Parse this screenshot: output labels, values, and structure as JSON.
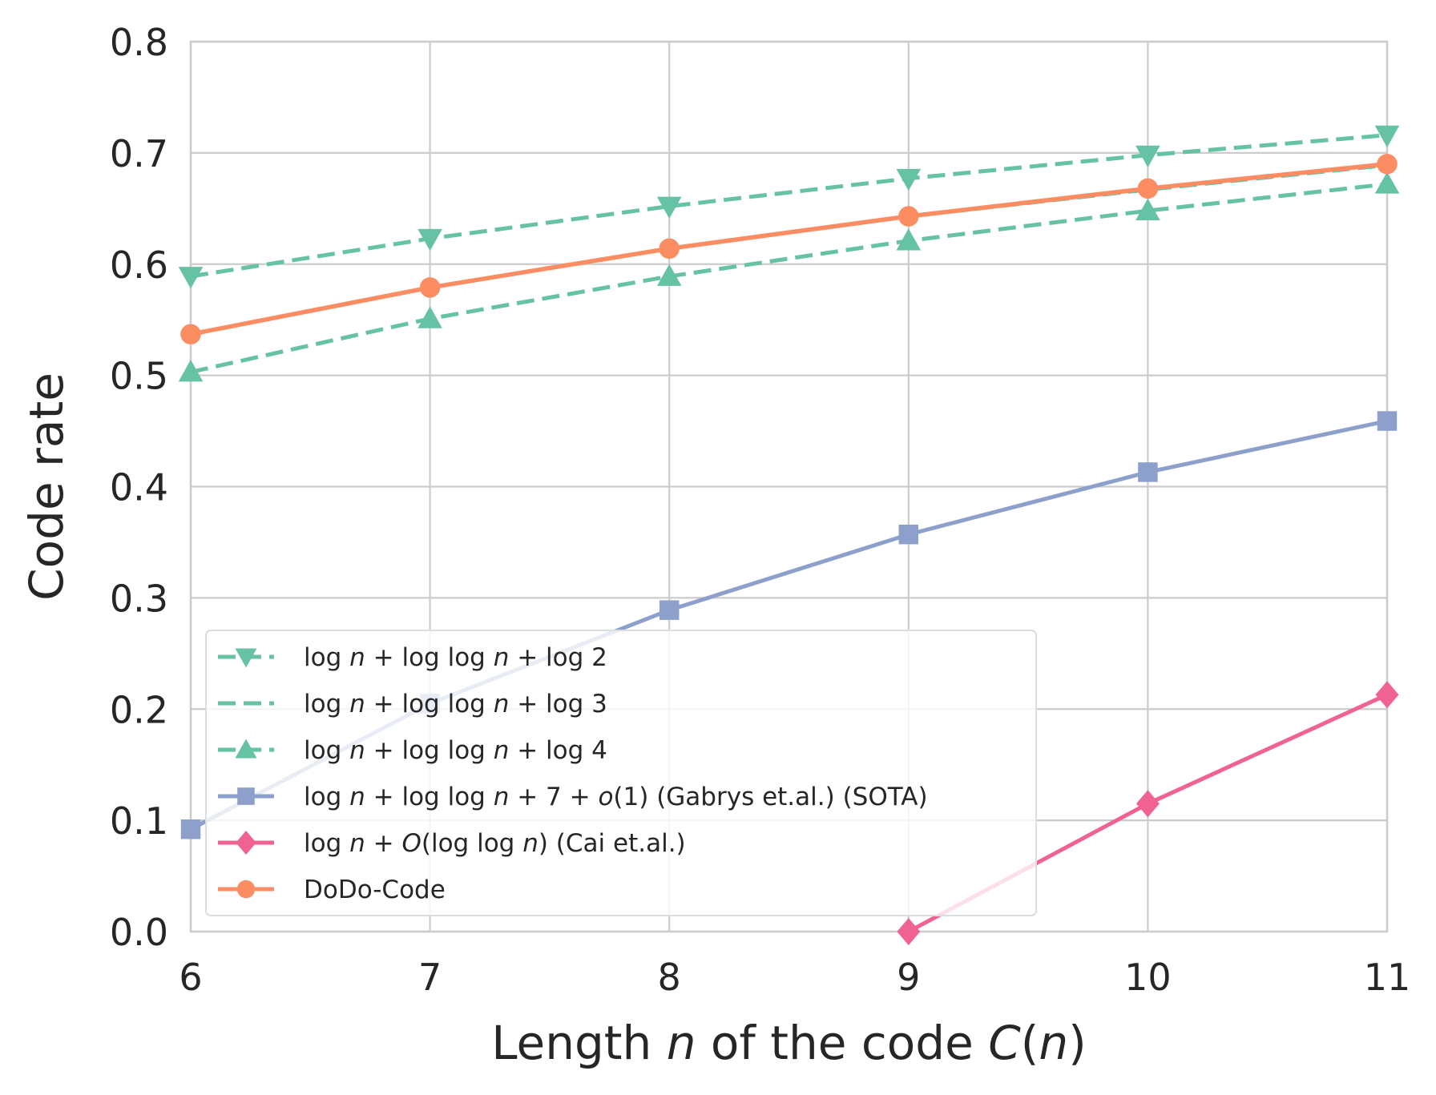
{
  "chart_data": {
    "type": "line",
    "title": "",
    "xlabel": {
      "prefix": "Length ",
      "n": "n",
      "middle": " of the code ",
      "c": "C",
      "open": "(",
      "n2": "n",
      "close": ")"
    },
    "ylabel": "Code rate",
    "xlim": [
      6,
      11
    ],
    "ylim": [
      0.0,
      0.8
    ],
    "grid": true,
    "legend_placement": "lower-left",
    "x_ticks": [
      6,
      7,
      8,
      9,
      10,
      11
    ],
    "x_tick_labels": [
      "6",
      "7",
      "8",
      "9",
      "10",
      "11"
    ],
    "y_ticks": [
      0.0,
      0.1,
      0.2,
      0.3,
      0.4,
      0.5,
      0.6,
      0.7,
      0.8
    ],
    "y_tick_labels": [
      "0.0",
      "0.1",
      "0.2",
      "0.3",
      "0.4",
      "0.5",
      "0.6",
      "0.7",
      "0.8"
    ],
    "x": [
      6,
      7,
      8,
      9,
      10,
      11
    ],
    "series": [
      {
        "name": "log n + log log n + log 2",
        "legend": [
          "log",
          " n",
          " + log log",
          " n",
          " + log 2"
        ],
        "values": [
          0.589,
          0.623,
          0.652,
          0.677,
          0.698,
          0.716
        ],
        "color": "#66c2a5",
        "dash": "dashed",
        "marker": "triangle-down"
      },
      {
        "name": "log n + log log n + log 3",
        "legend": [
          "log",
          " n",
          " + log log",
          " n",
          " + log 3"
        ],
        "values": [
          0.537,
          0.579,
          0.614,
          0.643,
          0.667,
          0.689
        ],
        "color": "#66c2a5",
        "dash": "dashed",
        "marker": "none"
      },
      {
        "name": "log n + log log n + log 4",
        "legend": [
          "log",
          " n",
          " + log log",
          " n",
          " + log 4"
        ],
        "values": [
          0.503,
          0.551,
          0.589,
          0.621,
          0.648,
          0.672
        ],
        "color": "#66c2a5",
        "dash": "dashed",
        "marker": "triangle-up"
      },
      {
        "name": "log n + log log n + 7 + o(1) (Gabrys et.al.) (SOTA)",
        "legend": [
          "log",
          " n",
          " + log log",
          " n",
          " + 7 + ",
          "o",
          "(1) (Gabrys et.al.) (SOTA)"
        ],
        "values": [
          0.092,
          0.205,
          0.289,
          0.357,
          0.413,
          0.459
        ],
        "color": "#8da0cb",
        "dash": "solid",
        "marker": "square"
      },
      {
        "name": "log n + O(log log n) (Cai et.al.)",
        "legend": [
          "log",
          " n",
          " + ",
          "O",
          "(log log ",
          "n",
          ") (Cai et.al.)"
        ],
        "values": [
          null,
          null,
          null,
          0.0,
          0.115,
          0.213
        ],
        "color": "#f06292",
        "dash": "solid",
        "marker": "diamond"
      },
      {
        "name": "DoDo-Code",
        "legend": [
          "DoDo-Code"
        ],
        "values": [
          0.537,
          0.579,
          0.614,
          0.643,
          0.668,
          0.69
        ],
        "color": "#fc8d62",
        "dash": "solid",
        "marker": "circle"
      }
    ]
  }
}
